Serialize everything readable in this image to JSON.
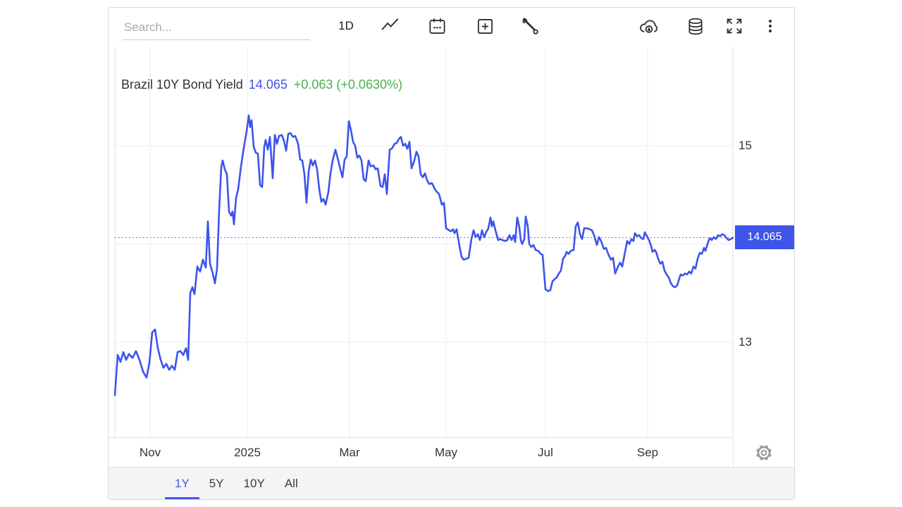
{
  "toolbar": {
    "search_placeholder": "Search...",
    "interval_label": "1D",
    "icons": [
      "trend-line",
      "calendar",
      "compare-add",
      "tools",
      "download",
      "data-source",
      "fullscreen",
      "more"
    ]
  },
  "title": {
    "instrument": "Brazil 10Y Bond Yield",
    "last": "14.065",
    "change": "+0.063 (+0.0630%)"
  },
  "colors": {
    "line": "#3d54ec",
    "badge_bg": "#3f54e8",
    "title_value": "#4450f0",
    "change_green": "#48b04c",
    "grid": "#ececec",
    "plot_border": "#e2e2e2",
    "current_line": "#6577e8",
    "active_tab": "#4457ee"
  },
  "chart_data": {
    "type": "line",
    "title": "Brazil 10Y Bond Yield",
    "xlabel": "",
    "ylabel": "",
    "x_unit": "time, mid-Oct 2024 to mid-Oct 2025 (arbitrary axis units)",
    "x_domain": [
      163,
      1040
    ],
    "ylim": [
      12.025,
      16.004
    ],
    "grid": "on",
    "legend": "none",
    "x_ticks": [
      {
        "x": 213,
        "label": "Nov"
      },
      {
        "x": 351,
        "label": "2025"
      },
      {
        "x": 496,
        "label": "Mar"
      },
      {
        "x": 633,
        "label": "May"
      },
      {
        "x": 774,
        "label": "Jul"
      },
      {
        "x": 919,
        "label": "Sep"
      }
    ],
    "y_gridlines": [
      15,
      14,
      13
    ],
    "y_labels": [
      {
        "value": 15,
        "label": "15"
      },
      {
        "value": 13,
        "label": "13"
      }
    ],
    "current_value": 14.065,
    "current_value_label": "14.065",
    "series": [
      {
        "name": "Brazil 10Y Bond Yield",
        "color": "#3d54ec",
        "points": [
          [
            163,
            12.46
          ],
          [
            167,
            12.87
          ],
          [
            171,
            12.8
          ],
          [
            175,
            12.9
          ],
          [
            179,
            12.82
          ],
          [
            183,
            12.88
          ],
          [
            188,
            12.84
          ],
          [
            193,
            12.91
          ],
          [
            198,
            12.82
          ],
          [
            203,
            12.7
          ],
          [
            208,
            12.64
          ],
          [
            212,
            12.79
          ],
          [
            216,
            13.1
          ],
          [
            220,
            13.13
          ],
          [
            224,
            12.94
          ],
          [
            228,
            12.82
          ],
          [
            232,
            12.74
          ],
          [
            236,
            12.78
          ],
          [
            240,
            12.72
          ],
          [
            244,
            12.76
          ],
          [
            248,
            12.72
          ],
          [
            252,
            12.9
          ],
          [
            256,
            12.91
          ],
          [
            260,
            12.87
          ],
          [
            264,
            12.94
          ],
          [
            267,
            12.82
          ],
          [
            270,
            13.5
          ],
          [
            273,
            13.56
          ],
          [
            276,
            13.49
          ],
          [
            280,
            13.77
          ],
          [
            284,
            13.72
          ],
          [
            288,
            13.84
          ],
          [
            292,
            13.76
          ],
          [
            295,
            14.23
          ],
          [
            298,
            13.8
          ],
          [
            302,
            13.7
          ],
          [
            305,
            13.6
          ],
          [
            308,
            13.75
          ],
          [
            311,
            14.35
          ],
          [
            314,
            14.78
          ],
          [
            316,
            14.85
          ],
          [
            319,
            14.76
          ],
          [
            322,
            14.71
          ],
          [
            325,
            14.33
          ],
          [
            328,
            14.29
          ],
          [
            330,
            14.33
          ],
          [
            332,
            14.2
          ],
          [
            335,
            14.47
          ],
          [
            338,
            14.56
          ],
          [
            342,
            14.79
          ],
          [
            346,
            14.98
          ],
          [
            350,
            15.15
          ],
          [
            353,
            15.31
          ],
          [
            355,
            15.19
          ],
          [
            357,
            15.26
          ],
          [
            360,
            14.99
          ],
          [
            363,
            14.93
          ],
          [
            366,
            14.92
          ],
          [
            369,
            14.6
          ],
          [
            372,
            14.58
          ],
          [
            375,
            14.99
          ],
          [
            377,
            15.06
          ],
          [
            380,
            14.96
          ],
          [
            383,
            15.09
          ],
          [
            387,
            14.67
          ],
          [
            390,
            15.11
          ],
          [
            393,
            15.02
          ],
          [
            396,
            15.1
          ],
          [
            400,
            15.11
          ],
          [
            403,
            15.05
          ],
          [
            406,
            14.95
          ],
          [
            409,
            15.12
          ],
          [
            412,
            15.13
          ],
          [
            416,
            15.09
          ],
          [
            419,
            15.1
          ],
          [
            423,
            15.02
          ],
          [
            426,
            14.86
          ],
          [
            429,
            14.85
          ],
          [
            432,
            14.71
          ],
          [
            435,
            14.42
          ],
          [
            438,
            14.74
          ],
          [
            441,
            14.86
          ],
          [
            444,
            14.8
          ],
          [
            447,
            14.85
          ],
          [
            450,
            14.76
          ],
          [
            453,
            14.56
          ],
          [
            456,
            14.43
          ],
          [
            459,
            14.46
          ],
          [
            462,
            14.4
          ],
          [
            466,
            14.53
          ],
          [
            469,
            14.72
          ],
          [
            472,
            14.85
          ],
          [
            476,
            14.96
          ],
          [
            480,
            14.85
          ],
          [
            483,
            14.76
          ],
          [
            486,
            14.68
          ],
          [
            489,
            14.86
          ],
          [
            492,
            14.89
          ],
          [
            495,
            15.25
          ],
          [
            498,
            15.16
          ],
          [
            501,
            15.04
          ],
          [
            504,
            15
          ],
          [
            507,
            14.88
          ],
          [
            510,
            14.9
          ],
          [
            513,
            14.85
          ],
          [
            516,
            14.66
          ],
          [
            519,
            14.64
          ],
          [
            523,
            14.85
          ],
          [
            526,
            14.79
          ],
          [
            530,
            14.8
          ],
          [
            533,
            14.76
          ],
          [
            536,
            14.77
          ],
          [
            540,
            14.59
          ],
          [
            543,
            14.58
          ],
          [
            546,
            14.71
          ],
          [
            549,
            14.51
          ],
          [
            553,
            14.96
          ],
          [
            556,
            14.97
          ],
          [
            560,
            15.02
          ],
          [
            563,
            15.03
          ],
          [
            566,
            15.07
          ],
          [
            569,
            15.09
          ],
          [
            572,
            15
          ],
          [
            575,
            15.02
          ],
          [
            578,
            14.97
          ],
          [
            581,
            15.04
          ],
          [
            584,
            14.77
          ],
          [
            588,
            14.85
          ],
          [
            591,
            14.94
          ],
          [
            594,
            14.89
          ],
          [
            597,
            14.71
          ],
          [
            600,
            14.68
          ],
          [
            603,
            14.72
          ],
          [
            606,
            14.65
          ],
          [
            609,
            14.61
          ],
          [
            613,
            14.62
          ],
          [
            617,
            14.56
          ],
          [
            620,
            14.53
          ],
          [
            623,
            14.51
          ],
          [
            627,
            14.4
          ],
          [
            630,
            14.42
          ],
          [
            633,
            14.16
          ],
          [
            637,
            14.14
          ],
          [
            640,
            14.13
          ],
          [
            643,
            14.15
          ],
          [
            645,
            14.11
          ],
          [
            648,
            14.15
          ],
          [
            652,
            13.98
          ],
          [
            655,
            13.87
          ],
          [
            658,
            13.84
          ],
          [
            662,
            13.85
          ],
          [
            665,
            13.86
          ],
          [
            669,
            14.05
          ],
          [
            672,
            14.14
          ],
          [
            675,
            14.07
          ],
          [
            678,
            14.1
          ],
          [
            681,
            14.04
          ],
          [
            684,
            14.14
          ],
          [
            687,
            14.07
          ],
          [
            690,
            14.12
          ],
          [
            693,
            14.16
          ],
          [
            696,
            14.27
          ],
          [
            698,
            14.18
          ],
          [
            700,
            14.23
          ],
          [
            703,
            14.14
          ],
          [
            707,
            14.04
          ],
          [
            710,
            14.05
          ],
          [
            713,
            14.04
          ],
          [
            717,
            14.03
          ],
          [
            720,
            14.04
          ],
          [
            723,
            14.09
          ],
          [
            726,
            14.04
          ],
          [
            729,
            14.09
          ],
          [
            731,
            14.02
          ],
          [
            734,
            14.27
          ],
          [
            737,
            14.17
          ],
          [
            739,
            14.04
          ],
          [
            741,
            14
          ],
          [
            744,
            14.05
          ],
          [
            746,
            14.28
          ],
          [
            749,
            14.18
          ],
          [
            751,
            14
          ],
          [
            754,
            13.97
          ],
          [
            757,
            13.99
          ],
          [
            760,
            13.94
          ],
          [
            764,
            13.93
          ],
          [
            767,
            13.9
          ],
          [
            770,
            13.89
          ],
          [
            774,
            13.54
          ],
          [
            778,
            13.52
          ],
          [
            781,
            13.53
          ],
          [
            784,
            13.62
          ],
          [
            787,
            13.64
          ],
          [
            790,
            13.66
          ],
          [
            793,
            13.7
          ],
          [
            796,
            13.73
          ],
          [
            799,
            13.85
          ],
          [
            802,
            13.88
          ],
          [
            804,
            13.92
          ],
          [
            807,
            13.9
          ],
          [
            810,
            13.93
          ],
          [
            814,
            13.94
          ],
          [
            817,
            14.18
          ],
          [
            820,
            14.22
          ],
          [
            823,
            14.1
          ],
          [
            826,
            14.05
          ],
          [
            829,
            14.16
          ],
          [
            833,
            14.16
          ],
          [
            837,
            14.15
          ],
          [
            840,
            14.14
          ],
          [
            843,
            14.09
          ],
          [
            847,
            13.99
          ],
          [
            850,
            14.07
          ],
          [
            853,
            14.03
          ],
          [
            857,
            13.95
          ],
          [
            860,
            13.96
          ],
          [
            863,
            13.9
          ],
          [
            867,
            13.84
          ],
          [
            870,
            13.86
          ],
          [
            873,
            13.7
          ],
          [
            877,
            13.77
          ],
          [
            880,
            13.81
          ],
          [
            883,
            13.77
          ],
          [
            887,
            13.92
          ],
          [
            890,
            14.03
          ],
          [
            893,
            14
          ],
          [
            896,
            14.05
          ],
          [
            899,
            14.03
          ],
          [
            901,
            14.11
          ],
          [
            904,
            14.08
          ],
          [
            907,
            14.09
          ],
          [
            910,
            14.06
          ],
          [
            913,
            14.05
          ],
          [
            915,
            14.12
          ],
          [
            918,
            14.08
          ],
          [
            921,
            14.04
          ],
          [
            924,
            13.98
          ],
          [
            926,
            13.92
          ],
          [
            929,
            13.94
          ],
          [
            931,
            13.92
          ],
          [
            934,
            13.85
          ],
          [
            937,
            13.8
          ],
          [
            940,
            13.82
          ],
          [
            943,
            13.73
          ],
          [
            946,
            13.69
          ],
          [
            949,
            13.66
          ],
          [
            952,
            13.6
          ],
          [
            955,
            13.57
          ],
          [
            958,
            13.56
          ],
          [
            961,
            13.58
          ],
          [
            964,
            13.65
          ],
          [
            966,
            13.69
          ],
          [
            969,
            13.68
          ],
          [
            972,
            13.7
          ],
          [
            975,
            13.69
          ],
          [
            978,
            13.72
          ],
          [
            981,
            13.7
          ],
          [
            984,
            13.77
          ],
          [
            987,
            13.75
          ],
          [
            990,
            13.85
          ],
          [
            993,
            13.91
          ],
          [
            996,
            13.9
          ],
          [
            999,
            13.96
          ],
          [
            1001,
            13.93
          ],
          [
            1004,
            14
          ],
          [
            1007,
            14.06
          ],
          [
            1010,
            14.04
          ],
          [
            1013,
            14.07
          ],
          [
            1016,
            14.05
          ],
          [
            1019,
            14.09
          ],
          [
            1022,
            14.08
          ],
          [
            1025,
            14.1
          ],
          [
            1028,
            14.09
          ],
          [
            1031,
            14.06
          ],
          [
            1034,
            14.04
          ],
          [
            1037,
            14.05
          ],
          [
            1040,
            14.065
          ]
        ]
      }
    ]
  },
  "range_tabs": {
    "items": [
      {
        "label": "1Y",
        "active": true
      },
      {
        "label": "5Y",
        "active": false
      },
      {
        "label": "10Y",
        "active": false
      },
      {
        "label": "All",
        "active": false
      }
    ]
  }
}
